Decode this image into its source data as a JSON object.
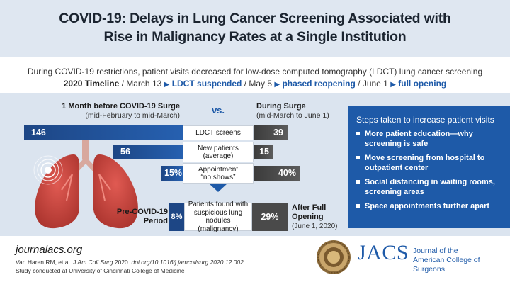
{
  "title": {
    "line1": "COVID-19: Delays in Lung Cancer Screening Associated with",
    "line2": "Rise in Malignancy Rates at a Single Institution"
  },
  "subtitle": "During COVID-19 restrictions, patient visits decreased for low-dose computed tomography (LDCT) lung cancer screening",
  "timeline": {
    "label": "2020 Timeline",
    "date1": "March 13",
    "event1": "LDCT suspended",
    "date2": "May 5",
    "event2": "phased reopening",
    "date3": "June 1",
    "event3": "full opening"
  },
  "headers": {
    "left": "1 Month before COVID-19 Surge",
    "left_sub": "(mid-February to mid-March)",
    "vs": "vs.",
    "right": "During Surge",
    "right_sub": "(mid-March to June 1)"
  },
  "rows": [
    {
      "before": "146",
      "label": "LDCT screens",
      "during": "39",
      "before_value": 146,
      "during_value": 39
    },
    {
      "before": "56",
      "label_line1": "New patients",
      "label_line2": "(average)",
      "during": "15",
      "before_value": 56,
      "during_value": 15
    },
    {
      "before": "15%",
      "label_line1": "Appointment",
      "label_line2": "“no shows”",
      "during": "40%",
      "before_value": 15,
      "during_value": 40
    }
  ],
  "nodules": {
    "pre_label_line1": "Pre-COVID-19",
    "pre_label_line2": "Period",
    "pre_value": "8%",
    "label_line1": "Patients found with",
    "label_line2": "suspicious lung nodules",
    "label_line3": "(malignancy)",
    "post_value": "29%",
    "after_label_line1": "After Full",
    "after_label_line2": "Opening",
    "after_sub": "(June 1, 2020)"
  },
  "steps": {
    "heading": "Steps taken to increase patient visits",
    "items": [
      "More patient education—why screening is safe",
      "Move screening from hospital to outpatient center",
      "Social distancing in waiting rooms, screening areas",
      "Space appointments further apart"
    ]
  },
  "footer": {
    "site": "journalacs.org",
    "cite_authors": "Van Haren RM, et al.",
    "cite_journal": "J Am Coll Surg",
    "cite_rest": "2020.",
    "cite_doi": "doi.org/10.1016/j.jamcollsurg.2020.12.002",
    "study": "Study conducted at University of Cincinnati College of Medicine"
  },
  "brand": {
    "logo_text": "JACS",
    "name_line1": "Journal of the",
    "name_line2": "American College of Surgeons"
  },
  "colors": {
    "accent_blue": "#1e5aa8",
    "dark_blue": "#1d4685",
    "gray": "#4a4a4a",
    "lung_red": "#c9413b"
  }
}
